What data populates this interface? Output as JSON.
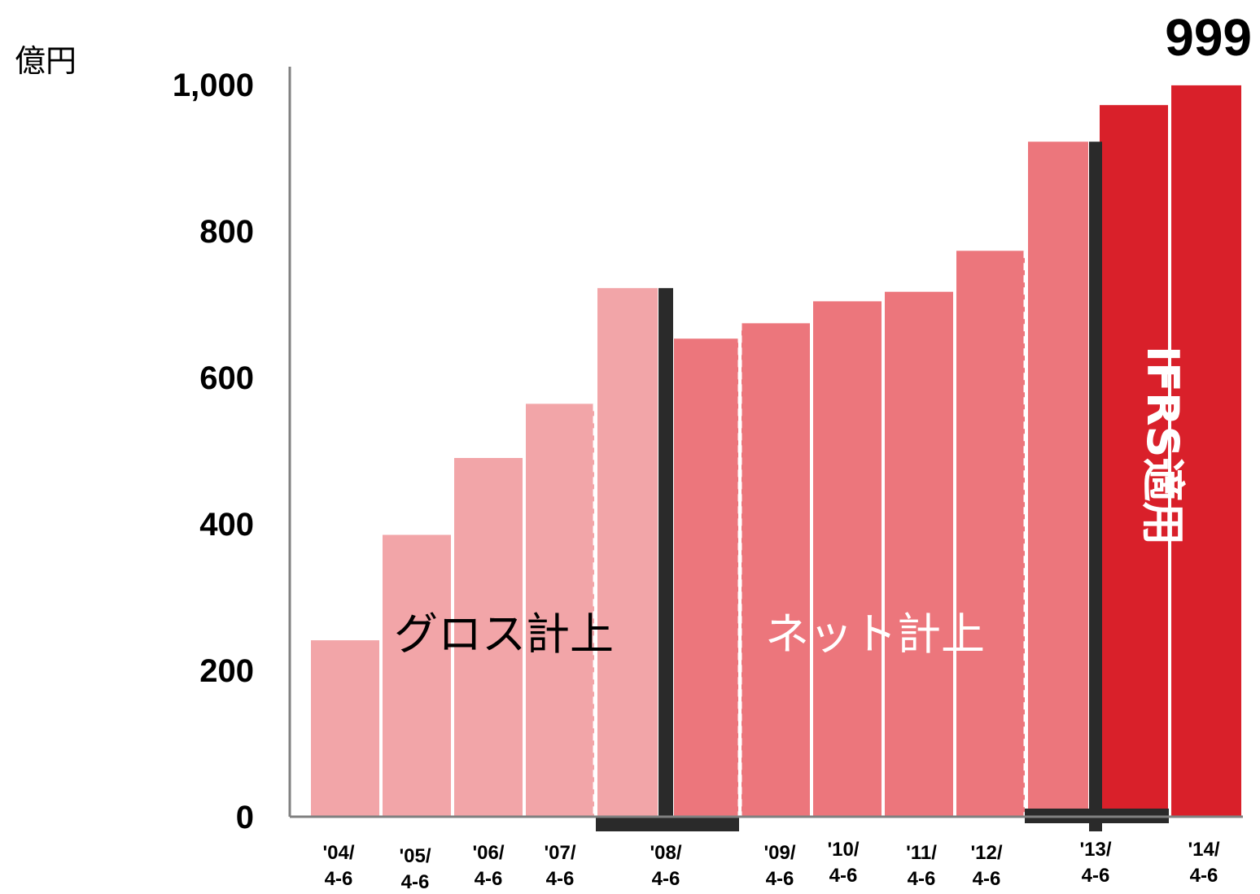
{
  "chart_data": {
    "type": "bar",
    "unit_label": "億円",
    "categories": [
      [
        "'04/",
        "4-6"
      ],
      [
        "'05/",
        "4-6"
      ],
      [
        "'06/",
        "4-6"
      ],
      [
        "'07/",
        "4-6"
      ],
      [
        "'08/",
        "4-6"
      ],
      [
        "'08/",
        "4-6"
      ],
      [
        "'09/",
        "4-6"
      ],
      [
        "'10/",
        "4-6"
      ],
      [
        "'11/",
        "4-6"
      ],
      [
        "'12/",
        "4-6"
      ],
      [
        "'13/",
        "4-6"
      ],
      [
        "'13/",
        "4-6"
      ],
      [
        "'14/",
        "4-6"
      ]
    ],
    "values": [
      241,
      385,
      490,
      564,
      722,
      653,
      674,
      704,
      717,
      773,
      922,
      972,
      999
    ],
    "bar_basis": [
      "gross",
      "gross",
      "gross",
      "gross",
      "gross",
      "net",
      "net",
      "net",
      "net",
      "net",
      "net",
      "ifrs",
      "ifrs"
    ],
    "yticks": [
      "0",
      "200",
      "400",
      "600",
      "800",
      "1,000"
    ],
    "ylim": [
      0,
      1000
    ],
    "value_label": "999",
    "annotations": {
      "gross": "グロス計上",
      "net": "ネット計上",
      "ifrs": "IFRS適用"
    },
    "colors": {
      "gross": "#f2a5a8",
      "net": "#ec767c",
      "ifrs": "#d9202a",
      "divider": "#2a2a2a",
      "axis": "#808080"
    }
  }
}
